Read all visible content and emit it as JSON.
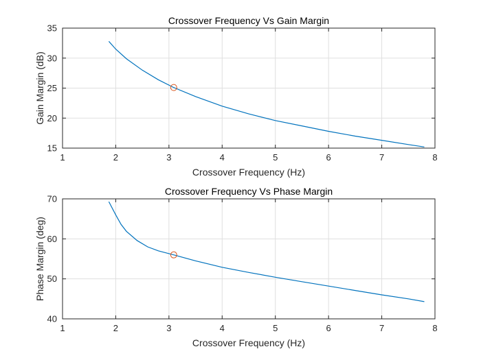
{
  "chart_data": [
    {
      "type": "line",
      "title": "Crossover Frequency Vs Gain Margin",
      "xlabel": "Crossover Frequency (Hz)",
      "ylabel": "Gain Margin (dB)",
      "xlim": [
        1,
        8
      ],
      "ylim": [
        15,
        35
      ],
      "xticks": [
        1,
        2,
        3,
        4,
        5,
        6,
        7,
        8
      ],
      "yticks": [
        15,
        20,
        25,
        30,
        35
      ],
      "grid": true,
      "line_color": "#0072BD",
      "marker_color": "#D95319",
      "series": [
        {
          "x": [
            1.87,
            2.0,
            2.2,
            2.5,
            2.8,
            3.09,
            3.5,
            4.0,
            4.5,
            5.0,
            5.5,
            6.0,
            6.5,
            7.0,
            7.5,
            7.8
          ],
          "values": [
            32.8,
            31.5,
            29.9,
            28.0,
            26.4,
            25.1,
            23.6,
            22.0,
            20.7,
            19.6,
            18.7,
            17.8,
            17.0,
            16.3,
            15.6,
            15.2
          ]
        }
      ],
      "markers": [
        {
          "x": 3.09,
          "y": 25.1
        }
      ]
    },
    {
      "type": "line",
      "title": "Crossover Frequency Vs Phase Margin",
      "xlabel": "Crossover Frequency (Hz)",
      "ylabel": "Phase Margin (deg)",
      "xlim": [
        1,
        8
      ],
      "ylim": [
        40,
        70
      ],
      "xticks": [
        1,
        2,
        3,
        4,
        5,
        6,
        7,
        8
      ],
      "yticks": [
        40,
        50,
        60,
        70
      ],
      "grid": true,
      "line_color": "#0072BD",
      "marker_color": "#D95319",
      "series": [
        {
          "x": [
            1.87,
            2.0,
            2.1,
            2.2,
            2.4,
            2.6,
            2.8,
            3.09,
            3.5,
            4.0,
            4.5,
            5.0,
            5.5,
            6.0,
            6.5,
            7.0,
            7.5,
            7.8
          ],
          "values": [
            69.3,
            66.0,
            63.6,
            61.9,
            59.6,
            58.0,
            57.0,
            56.0,
            54.5,
            52.9,
            51.6,
            50.4,
            49.3,
            48.2,
            47.1,
            46.0,
            45.0,
            44.3
          ]
        }
      ],
      "markers": [
        {
          "x": 3.09,
          "y": 56.0
        }
      ]
    }
  ]
}
